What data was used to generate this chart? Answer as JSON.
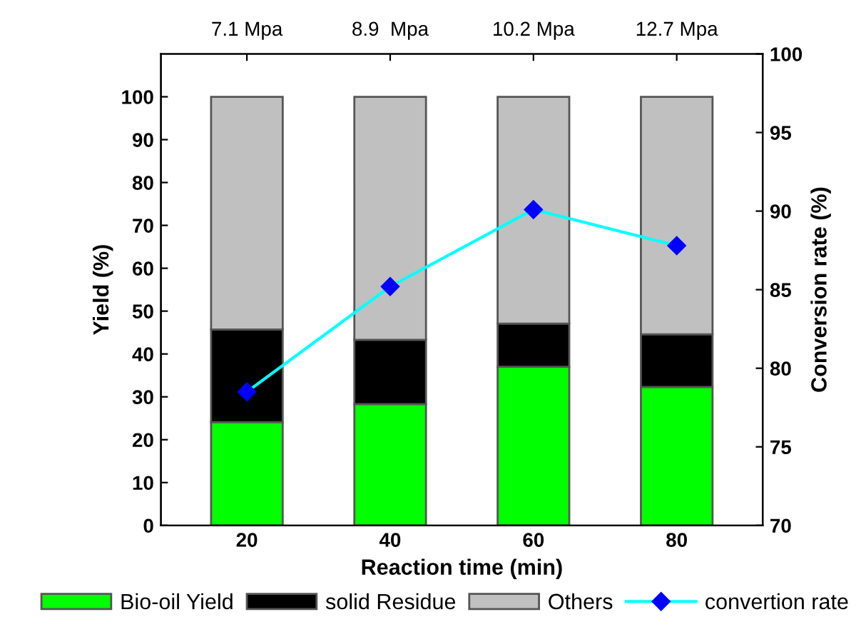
{
  "chart_data": {
    "type": "bar",
    "stacked": true,
    "xlabel": "Reaction time (min)",
    "ylabel": "Yield (%)",
    "y2label": "Conversion rate (%)",
    "categories": [
      "20",
      "40",
      "60",
      "80"
    ],
    "series": [
      {
        "name": "Bio-oil Yield",
        "color": "#00ff00",
        "values": [
          24.1,
          28.3,
          37.0,
          32.3
        ]
      },
      {
        "name": "solid Residue",
        "color": "#000000",
        "values": [
          21.6,
          15.0,
          10.1,
          12.3
        ]
      },
      {
        "name": "Others",
        "color": "#c0c0c0",
        "values": [
          54.3,
          56.7,
          52.9,
          55.4
        ]
      },
      {
        "name": "convertion rate",
        "type": "line",
        "axis": "y2",
        "color": "#00ffff",
        "marker": "diamond",
        "values": [
          78.5,
          85.2,
          90.1,
          87.8
        ]
      }
    ],
    "ylim": [
      0,
      110
    ],
    "yticks": [
      0,
      10,
      20,
      30,
      40,
      50,
      60,
      70,
      80,
      90,
      100
    ],
    "y2lim": [
      70,
      100
    ],
    "y2ticks": [
      70,
      75,
      80,
      85,
      90,
      95,
      100
    ],
    "annotations": [
      {
        "text": "7.1 Mpa",
        "x": "20"
      },
      {
        "text": "8.9  Mpa",
        "x": "40"
      },
      {
        "text": "10.2 Mpa",
        "x": "60"
      },
      {
        "text": "12.7 Mpa",
        "x": "80"
      }
    ],
    "legend": "bottom",
    "grid": false
  }
}
